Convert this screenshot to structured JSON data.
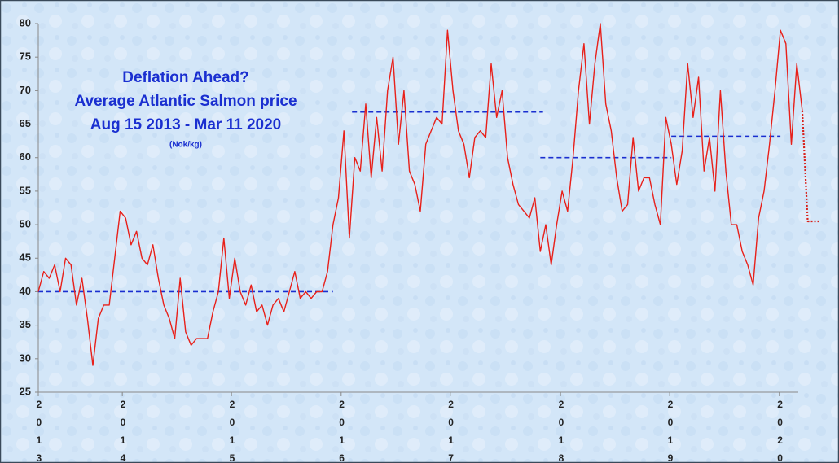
{
  "chart_data": {
    "type": "line",
    "title": [
      "Deflation Ahead?",
      "Average Atlantic Salmon price",
      "Aug 15 2013 - Mar 11 2020"
    ],
    "subtitle": "(Nok/kg)",
    "x": [
      0,
      1,
      2,
      3,
      4,
      5,
      6,
      7,
      8,
      9,
      10,
      11,
      12,
      13,
      14,
      15,
      16,
      17,
      18,
      19,
      20,
      21,
      22,
      23,
      24,
      25,
      26,
      27,
      28,
      29,
      30,
      31,
      32,
      33,
      34,
      35,
      36,
      37,
      38,
      39,
      40,
      41,
      42,
      43,
      44,
      45,
      46,
      47,
      48,
      49,
      50,
      51,
      52,
      53,
      54,
      55,
      56,
      57,
      58,
      59,
      60,
      61,
      62,
      63,
      64,
      65,
      66,
      67,
      68,
      69,
      70,
      71,
      72,
      73,
      74,
      75,
      76,
      77,
      78,
      79,
      80,
      81,
      82,
      83,
      84,
      85,
      86,
      87,
      88,
      89,
      90,
      91,
      92,
      93,
      94,
      95,
      96,
      97,
      98,
      99,
      100,
      101,
      102,
      103,
      104,
      105,
      106,
      107,
      108,
      109,
      110,
      111,
      112,
      113,
      114,
      115,
      116,
      117,
      118,
      119,
      120,
      121,
      122,
      123,
      124,
      125,
      126,
      127,
      128,
      129,
      130,
      131,
      132,
      133,
      134,
      135,
      136,
      137,
      138,
      139,
      140,
      141,
      142,
      143
    ],
    "series": [
      {
        "color": "#e8201a",
        "style": "solid",
        "values": [
          40,
          43,
          42,
          44,
          40,
          45,
          44,
          38,
          42,
          36,
          29,
          36,
          38,
          38,
          45,
          52,
          51,
          47,
          49,
          45,
          44,
          47,
          42,
          38,
          36,
          33,
          42,
          34,
          32,
          33,
          33,
          33,
          37,
          40,
          48,
          39,
          45,
          40,
          38,
          41,
          37,
          38,
          35,
          38,
          39,
          37,
          40,
          43,
          39,
          40,
          39,
          40,
          40,
          43,
          50,
          54,
          64,
          48,
          60,
          58,
          68,
          57,
          66,
          58,
          70,
          75,
          62,
          70,
          58,
          56,
          52,
          62,
          64,
          66,
          65,
          79,
          70,
          64,
          62,
          57,
          63,
          64,
          63,
          74,
          66,
          70,
          60,
          56,
          53,
          52,
          51,
          54,
          46,
          50,
          44,
          50,
          55,
          52,
          60,
          70,
          77,
          65,
          74,
          80,
          68,
          64,
          57,
          52,
          53,
          63,
          55,
          57,
          57,
          53,
          50,
          66,
          62,
          56,
          61,
          74,
          66,
          72,
          58,
          63,
          55,
          70,
          58,
          50,
          50,
          46,
          44,
          41,
          51,
          55,
          62,
          70,
          79,
          77,
          62,
          74,
          67,
          null,
          null,
          null
        ]
      },
      {
        "color": "#d8201a",
        "style": "dotted",
        "values": [
          null,
          null,
          null,
          null,
          null,
          null,
          null,
          null,
          null,
          null,
          null,
          null,
          null,
          null,
          null,
          null,
          null,
          null,
          null,
          null,
          null,
          null,
          null,
          null,
          null,
          null,
          null,
          null,
          null,
          null,
          null,
          null,
          null,
          null,
          null,
          null,
          null,
          null,
          null,
          null,
          null,
          null,
          null,
          null,
          null,
          null,
          null,
          null,
          null,
          null,
          null,
          null,
          null,
          null,
          null,
          null,
          null,
          null,
          null,
          null,
          null,
          null,
          null,
          null,
          null,
          null,
          null,
          null,
          null,
          null,
          null,
          null,
          null,
          null,
          null,
          null,
          null,
          null,
          null,
          null,
          null,
          null,
          null,
          null,
          null,
          null,
          null,
          null,
          null,
          null,
          null,
          null,
          null,
          null,
          null,
          null,
          null,
          null,
          null,
          null,
          null,
          null,
          null,
          null,
          null,
          null,
          null,
          null,
          null,
          null,
          null,
          null,
          null,
          null,
          null,
          null,
          null,
          null,
          null,
          null,
          null,
          null,
          null,
          null,
          null,
          null,
          null,
          null,
          null,
          null,
          null,
          null,
          null,
          null,
          null,
          null,
          null,
          null,
          null,
          null,
          67,
          50.5,
          50.5,
          50.5
        ]
      }
    ],
    "reference_lines": [
      {
        "y": 40,
        "x": [
          0,
          54
        ],
        "color": "#1a2fd0"
      },
      {
        "y": 66.8,
        "x": [
          57.5,
          92.5
        ],
        "color": "#1a2fd0"
      },
      {
        "y": 60,
        "x": [
          92,
          116
        ],
        "color": "#1a2fd0"
      },
      {
        "y": 63.2,
        "x": [
          116,
          136
        ],
        "color": "#1a2fd0"
      }
    ],
    "xlim": [
      0,
      143
    ],
    "xticks": [
      {
        "value": 0,
        "label": "2013"
      },
      {
        "value": 15.4,
        "label": "2014"
      },
      {
        "value": 35.4,
        "label": "2015"
      },
      {
        "value": 55.5,
        "label": "2016"
      },
      {
        "value": 75.5,
        "label": "2017"
      },
      {
        "value": 95.7,
        "label": "2018"
      },
      {
        "value": 115.7,
        "label": "2019"
      },
      {
        "value": 135.8,
        "label": "2020"
      }
    ],
    "ylim": [
      25,
      80
    ],
    "yticks": [
      25,
      30,
      35,
      40,
      45,
      50,
      55,
      60,
      65,
      70,
      75,
      80
    ]
  }
}
